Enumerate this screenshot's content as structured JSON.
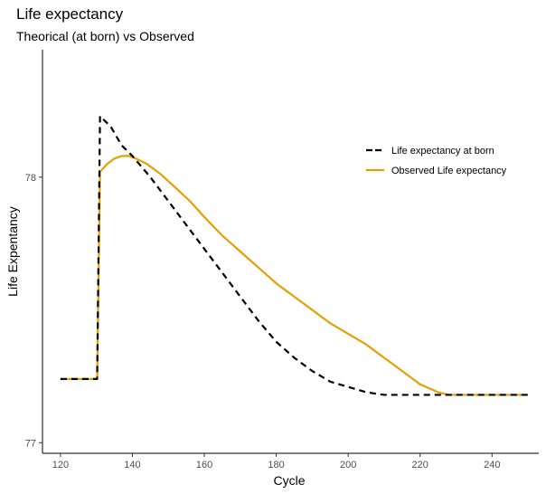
{
  "chart_data": {
    "type": "line",
    "title": "Life expectancy",
    "subtitle": "Theorical (at born) vs Observed",
    "xlabel": "Cycle",
    "ylabel": "Life Expentancy",
    "xlim": [
      115,
      253
    ],
    "ylim": [
      76.96,
      78.48
    ],
    "x_ticks": [
      120,
      140,
      160,
      180,
      200,
      220,
      240
    ],
    "y_ticks": [
      77,
      78
    ],
    "grid": false,
    "legend_position": "top-right",
    "series": [
      {
        "name": "Life expectancy at born",
        "color": "#000000",
        "dash": "dashed",
        "points": [
          [
            120,
            77.24
          ],
          [
            129,
            77.24
          ],
          [
            130.2,
            77.24
          ],
          [
            131,
            78.23
          ],
          [
            134,
            78.19
          ],
          [
            137,
            78.12
          ],
          [
            140,
            78.08
          ],
          [
            145,
            78.0
          ],
          [
            150,
            77.91
          ],
          [
            155,
            77.82
          ],
          [
            160,
            77.73
          ],
          [
            165,
            77.64
          ],
          [
            170,
            77.55
          ],
          [
            175,
            77.46
          ],
          [
            180,
            77.38
          ],
          [
            185,
            77.32
          ],
          [
            190,
            77.27
          ],
          [
            195,
            77.23
          ],
          [
            200,
            77.21
          ],
          [
            205,
            77.19
          ],
          [
            210,
            77.18
          ],
          [
            215,
            77.18
          ],
          [
            220,
            77.18
          ],
          [
            225,
            77.18
          ],
          [
            230,
            77.18
          ],
          [
            240,
            77.18
          ],
          [
            250,
            77.18
          ]
        ]
      },
      {
        "name": "Observed Life expectancy",
        "color": "#E69F00",
        "dash": "solid",
        "points": [
          [
            120,
            77.24
          ],
          [
            129,
            77.24
          ],
          [
            130.2,
            77.24
          ],
          [
            131,
            78.02
          ],
          [
            133,
            78.05
          ],
          [
            135,
            78.07
          ],
          [
            137,
            78.08
          ],
          [
            139,
            78.08
          ],
          [
            141,
            78.07
          ],
          [
            144,
            78.05
          ],
          [
            148,
            78.01
          ],
          [
            152,
            77.96
          ],
          [
            156,
            77.91
          ],
          [
            160,
            77.85
          ],
          [
            165,
            77.78
          ],
          [
            170,
            77.72
          ],
          [
            175,
            77.66
          ],
          [
            180,
            77.6
          ],
          [
            185,
            77.55
          ],
          [
            190,
            77.5
          ],
          [
            195,
            77.45
          ],
          [
            200,
            77.41
          ],
          [
            205,
            77.37
          ],
          [
            210,
            77.32
          ],
          [
            215,
            77.27
          ],
          [
            220,
            77.22
          ],
          [
            225,
            77.19
          ],
          [
            228,
            77.18
          ],
          [
            230,
            77.18
          ],
          [
            240,
            77.18
          ],
          [
            250,
            77.18
          ]
        ]
      }
    ]
  }
}
